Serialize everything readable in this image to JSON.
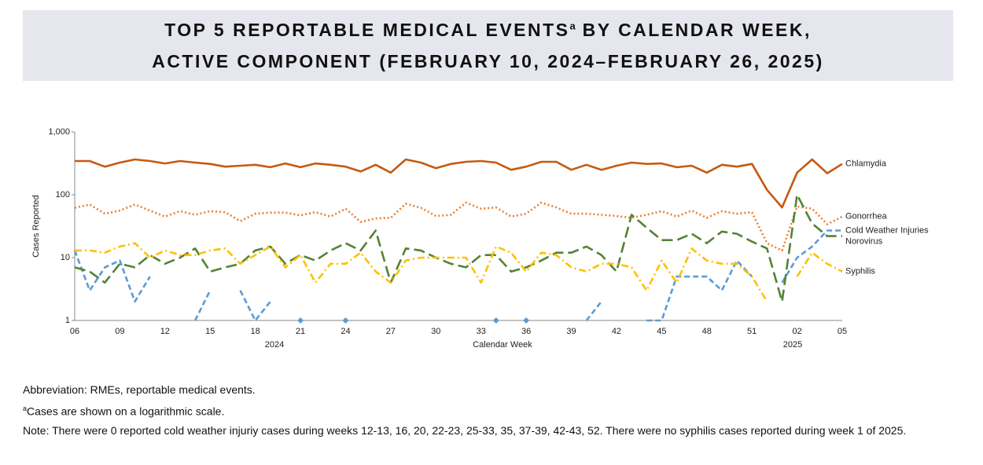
{
  "chart_data": {
    "type": "line",
    "title": [
      "TOP 5 REPORTABLE MEDICAL EVENTS",
      "a",
      "BY CALENDAR WEEK,",
      "ACTIVE COMPONENT (FEBRUARY 10, 2024–FEBRUARY 26, 2025)"
    ],
    "y_label": "Cases Reported",
    "x_label": "Calendar Week",
    "annotations": [
      "2024",
      "2025"
    ],
    "log_scale": true,
    "ylim": [
      1,
      1000
    ],
    "yticks": [
      1,
      10,
      100,
      {
        "value": 1000,
        "label": "1,000"
      }
    ],
    "categories": [
      "06",
      null,
      null,
      "09",
      null,
      null,
      "12",
      null,
      null,
      "15",
      null,
      null,
      "18",
      null,
      null,
      "21",
      null,
      null,
      "24",
      null,
      null,
      "27",
      null,
      null,
      "30",
      null,
      null,
      "33",
      null,
      null,
      "36",
      null,
      null,
      "39",
      null,
      null,
      "42",
      null,
      null,
      "45",
      null,
      null,
      "48",
      null,
      null,
      "51",
      null,
      null,
      "02",
      null,
      null,
      "05"
    ],
    "series": [
      {
        "name": "Chlamydia",
        "color": "#C55A11",
        "line_style": "solid",
        "values": [
          345,
          345,
          280,
          325,
          365,
          345,
          315,
          345,
          325,
          310,
          280,
          290,
          300,
          275,
          315,
          275,
          315,
          300,
          280,
          235,
          300,
          225,
          365,
          325,
          265,
          310,
          335,
          345,
          325,
          250,
          280,
          335,
          335,
          250,
          300,
          250,
          290,
          325,
          310,
          315,
          275,
          290,
          225,
          300,
          280,
          310,
          120,
          63,
          225,
          365,
          220,
          310
        ]
      },
      {
        "name": "Gonorrhea",
        "color": "#ED7D31",
        "line_style": "dotted",
        "values": [
          62,
          70,
          50,
          56,
          70,
          56,
          45,
          55,
          48,
          55,
          53,
          38,
          50,
          52,
          52,
          47,
          53,
          45,
          60,
          37,
          42,
          43,
          72,
          62,
          46,
          48,
          75,
          60,
          63,
          45,
          50,
          75,
          63,
          50,
          50,
          48,
          46,
          43,
          48,
          55,
          45,
          56,
          43,
          55,
          50,
          53,
          17,
          13,
          65,
          60,
          34,
          45
        ]
      },
      {
        "name": "Cold Weather Injuries",
        "color": "#5B9BD5",
        "line_style": "dashed",
        "values": [
          13,
          3,
          7,
          9,
          2,
          5,
          null,
          null,
          1,
          3,
          null,
          3,
          1,
          2,
          null,
          1,
          null,
          null,
          1,
          null,
          null,
          null,
          null,
          null,
          null,
          null,
          null,
          null,
          1,
          null,
          1,
          null,
          null,
          null,
          1,
          2,
          null,
          null,
          1,
          1,
          5,
          5,
          5,
          3,
          9,
          5,
          null,
          4,
          10,
          15,
          27,
          27
        ]
      },
      {
        "name": "Norovirus",
        "color": "#548235",
        "line_style": "longdash",
        "values": [
          7,
          6,
          4,
          8,
          7,
          11,
          8,
          10,
          14,
          6,
          7,
          8,
          13,
          15,
          8,
          11,
          9,
          13,
          17,
          13,
          27,
          4,
          14,
          13,
          10,
          8,
          7,
          11,
          11,
          6,
          7,
          9,
          12,
          12,
          15,
          11,
          6,
          48,
          30,
          19,
          19,
          24,
          17,
          26,
          24,
          18,
          14,
          2,
          100,
          35,
          22,
          22
        ]
      },
      {
        "name": "Syphilis",
        "color": "#FFC000",
        "line_style": "dashdot",
        "values": [
          13,
          13,
          12,
          15,
          17,
          10,
          13,
          11,
          11,
          13,
          14,
          8,
          11,
          15,
          7,
          11,
          4,
          8,
          8,
          12,
          6,
          4,
          9,
          10,
          10,
          10,
          10,
          4,
          15,
          12,
          6,
          12,
          11,
          7,
          6,
          8,
          8,
          7,
          3,
          9,
          4,
          14,
          9,
          8,
          8,
          5,
          2,
          null,
          5,
          12,
          8,
          6
        ]
      }
    ]
  },
  "footnotes": {
    "abbreviation": "Abbreviation: RMEs, reportable medical events.",
    "marker": "a",
    "log_note": "Cases are shown on a logarithmic scale.",
    "note": "Note: There were 0 reported cold weather injuriy cases during weeks 12-13, 16, 20, 22-23, 25-33, 35, 37-39, 42-43, 52. There were no syphilis cases reported during week 1 of 2025."
  }
}
